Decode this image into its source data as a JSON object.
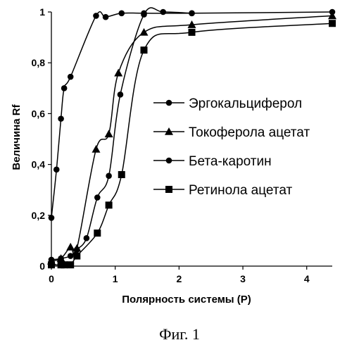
{
  "chart_data": {
    "type": "line",
    "title": "",
    "xlabel": "Полярность системы (P)",
    "ylabel": "Величина Rf",
    "xlim": [
      0,
      4.4
    ],
    "ylim": [
      0,
      1
    ],
    "x_ticks": [
      0,
      1,
      2,
      3,
      4
    ],
    "y_ticks": [
      0,
      0.2,
      0.4,
      0.6,
      0.8,
      1
    ],
    "x_tick_labels": [
      "0",
      "1",
      "2",
      "3",
      "4"
    ],
    "y_tick_labels": [
      "0",
      "0,2",
      "0,4",
      "0,6",
      "0,8",
      "1"
    ],
    "grid": false,
    "legend_position": "right-center",
    "series": [
      {
        "name": "Эргокальциферол",
        "marker": "circle",
        "x": [
          0,
          0.08,
          0.15,
          0.2,
          0.3,
          0.7,
          0.85,
          1.1,
          1.45,
          2.2,
          4.4
        ],
        "y": [
          0.19,
          0.38,
          0.58,
          0.7,
          0.745,
          0.985,
          0.98,
          0.995,
          0.995,
          0.995,
          1.0
        ]
      },
      {
        "name": "Токоферола ацетат",
        "marker": "triangle",
        "x": [
          0,
          0.15,
          0.3,
          0.4,
          0.7,
          0.9,
          1.05,
          1.45,
          2.2,
          4.4
        ],
        "y": [
          0.02,
          0.03,
          0.075,
          0.07,
          0.46,
          0.52,
          0.76,
          0.92,
          0.95,
          0.985
        ]
      },
      {
        "name": "Бета-каротин",
        "marker": "circle",
        "x": [
          0,
          0.15,
          0.3,
          0.4,
          0.55,
          0.72,
          0.9,
          1.08,
          1.45,
          1.75,
          2.2
        ],
        "y": [
          0.025,
          0.03,
          0.04,
          0.065,
          0.11,
          0.27,
          0.355,
          0.675,
          0.99,
          1.0,
          0.995
        ]
      },
      {
        "name": "Ретинола ацетат",
        "marker": "square",
        "x": [
          0,
          0.15,
          0.2,
          0.3,
          0.4,
          0.72,
          0.9,
          1.1,
          1.45,
          2.2,
          4.4
        ],
        "y": [
          0.005,
          0.005,
          0.005,
          0.005,
          0.04,
          0.13,
          0.24,
          0.36,
          0.85,
          0.92,
          0.955
        ]
      }
    ]
  },
  "caption": "Фиг. 1"
}
